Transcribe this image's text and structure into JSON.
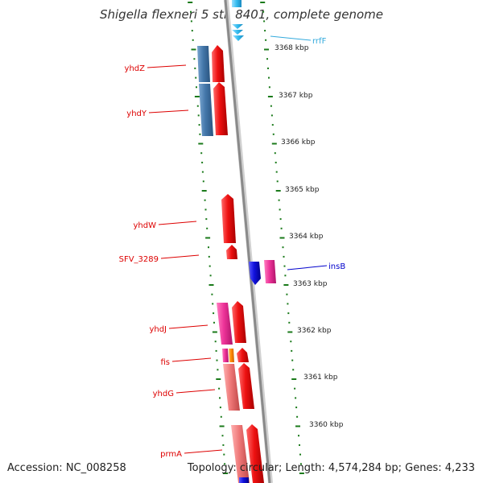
{
  "header": {
    "title": "Shigella flexneri 5 str. 8401, complete genome"
  },
  "footer": {
    "accession": "Accession: NC_008258",
    "topology": "Topology: circular; Length: 4,574,284 bp; Genes: 4,233"
  },
  "map": {
    "ticks": [
      {
        "label": "3368 kbp"
      },
      {
        "label": "3367 kbp"
      },
      {
        "label": "3366 kbp"
      },
      {
        "label": "3365 kbp"
      },
      {
        "label": "3364 kbp"
      },
      {
        "label": "3363 kbp"
      },
      {
        "label": "3362 kbp"
      },
      {
        "label": "3361 kbp"
      },
      {
        "label": "3360 kbp"
      }
    ],
    "gene_labels": [
      {
        "name": "rrfF",
        "color": "#33aadd"
      },
      {
        "name": "yhdZ",
        "color": "#dd0000"
      },
      {
        "name": "yhdY",
        "color": "#dd0000"
      },
      {
        "name": "yhdW",
        "color": "#dd0000"
      },
      {
        "name": "SFV_3289",
        "color": "#dd0000"
      },
      {
        "name": "insB",
        "color": "#0000cc"
      },
      {
        "name": "yhdJ",
        "color": "#dd0000"
      },
      {
        "name": "fis",
        "color": "#dd0000"
      },
      {
        "name": "yhdG",
        "color": "#dd0000"
      },
      {
        "name": "prmA",
        "color": "#dd0000"
      }
    ],
    "colors": {
      "backbone": "#8a8a8a",
      "tick": "#1a7a1a",
      "red_gene": "#ee1111",
      "pink_gene": "#ee3399",
      "salmon_gene": "#ee7777",
      "steel_gene": "#4477aa",
      "blue_gene": "#1111dd",
      "cyan_gene": "#33bbee",
      "orange_gene": "#ff8800"
    }
  }
}
